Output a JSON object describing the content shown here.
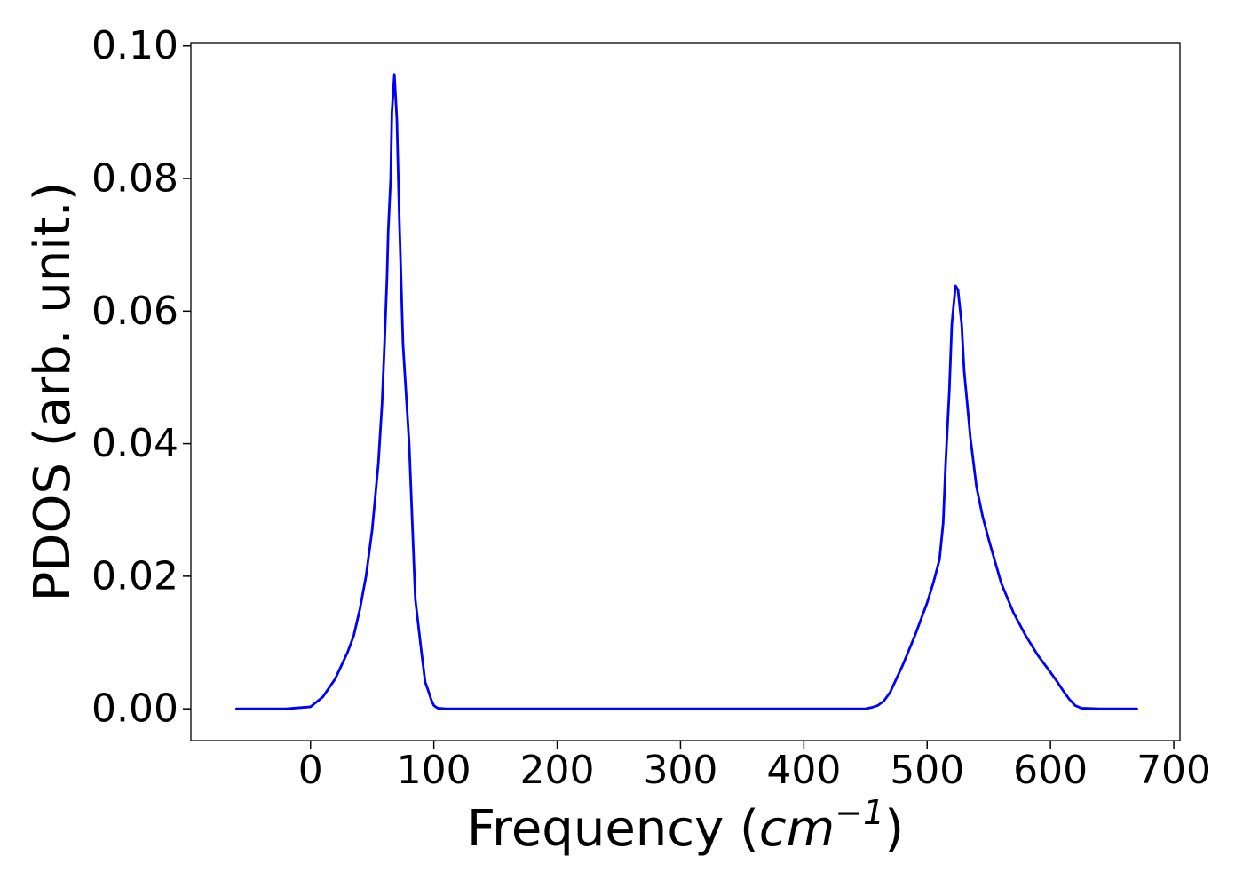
{
  "chart_data": {
    "type": "line",
    "title": "",
    "xlabel": {
      "prefix": "Frequency (",
      "unit_base": "cm",
      "unit_exponent": "−1",
      "suffix": ")"
    },
    "ylabel": "PDOS (arb. unit.)",
    "xlim": [
      -97,
      705
    ],
    "ylim": [
      -0.0048,
      0.1005
    ],
    "xticks": [
      0,
      100,
      200,
      300,
      400,
      500,
      600,
      700
    ],
    "xtick_labels": [
      "0",
      "100",
      "200",
      "300",
      "400",
      "500",
      "600",
      "700"
    ],
    "yticks": [
      0.0,
      0.02,
      0.04,
      0.06,
      0.08,
      0.1
    ],
    "ytick_labels": [
      "0.00",
      "0.02",
      "0.04",
      "0.06",
      "0.08",
      "0.10"
    ],
    "grid": false,
    "series": [
      {
        "color": "#0000ff",
        "x": [
          -60,
          -40,
          -20,
          0,
          10,
          20,
          25,
          30,
          35,
          40,
          45,
          50,
          55,
          58,
          60,
          62,
          63,
          65,
          66,
          68,
          70,
          72,
          75,
          80,
          85,
          90,
          93,
          95,
          98,
          100,
          103,
          110,
          150,
          200,
          300,
          400,
          450,
          455,
          460,
          465,
          470,
          480,
          490,
          500,
          505,
          510,
          513,
          515,
          518,
          520,
          523,
          525,
          528,
          530,
          535,
          540,
          545,
          550,
          560,
          570,
          580,
          590,
          600,
          605,
          610,
          615,
          620,
          625,
          640,
          670
        ],
        "y": [
          0,
          0,
          0,
          0.0003,
          0.0018,
          0.0045,
          0.0065,
          0.0085,
          0.011,
          0.015,
          0.02,
          0.027,
          0.037,
          0.046,
          0.055,
          0.065,
          0.072,
          0.08,
          0.09,
          0.0957,
          0.089,
          0.074,
          0.055,
          0.04,
          0.0165,
          0.0085,
          0.004,
          0.003,
          0.0013,
          0.0005,
          0.0001,
          0,
          0,
          0,
          0,
          0,
          0,
          0.0002,
          0.0005,
          0.0012,
          0.0025,
          0.0065,
          0.011,
          0.016,
          0.019,
          0.0225,
          0.028,
          0.037,
          0.048,
          0.058,
          0.0638,
          0.0632,
          0.058,
          0.051,
          0.041,
          0.0335,
          0.029,
          0.0255,
          0.019,
          0.0145,
          0.011,
          0.008,
          0.0055,
          0.0042,
          0.0028,
          0.0015,
          0.0005,
          0.0001,
          0,
          0
        ]
      }
    ]
  }
}
